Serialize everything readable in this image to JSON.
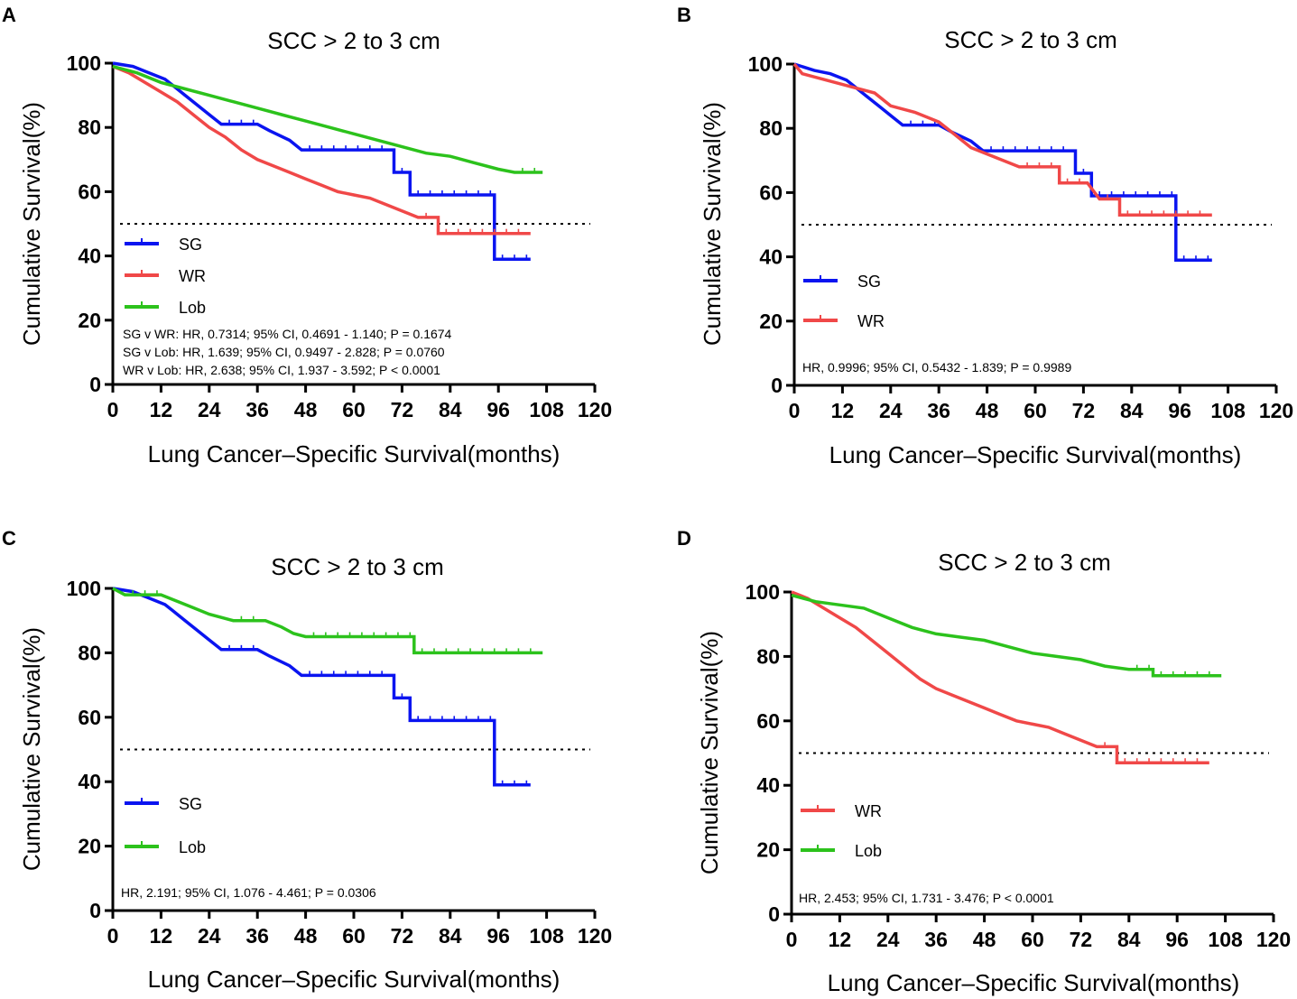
{
  "colors": {
    "SG": "#0a14f0",
    "WR": "#f04848",
    "Lob": "#2cc21c"
  },
  "chart_data": [
    {
      "panel": "A",
      "type": "line",
      "title": "SCC > 2 to 3 cm",
      "xlabel": "Lung Cancer–Specific Survival(months)",
      "ylabel": "Cumulative Survival(%)",
      "xlim": [
        0,
        120
      ],
      "ylim": [
        0,
        100
      ],
      "xticks": [
        "0",
        "12",
        "24",
        "36",
        "48",
        "60",
        "72",
        "84",
        "96",
        "108",
        "120"
      ],
      "yticks": [
        "0",
        "20",
        "40",
        "60",
        "80",
        "100"
      ],
      "reference_line": 50,
      "legend": [
        "SG",
        "WR",
        "Lob"
      ],
      "stats": [
        "SG v WR: HR, 0.7314; 95% CI, 0.4691  - 1.140; P = 0.1674",
        "SG v Lob: HR, 1.639; 95% CI, 0.9497  - 2.828; P = 0.0760",
        "WR v Lob: HR, 2.638; 95% CI, 1.937 - 3.592; P < 0.0001"
      ],
      "series": [
        {
          "name": "SG",
          "points": [
            [
              0,
              100
            ],
            [
              5,
              99
            ],
            [
              9,
              97
            ],
            [
              13,
              95
            ],
            [
              15,
              93
            ],
            [
              18,
              90
            ],
            [
              21,
              87
            ],
            [
              24,
              84
            ],
            [
              27,
              81
            ],
            [
              36,
              81
            ],
            [
              39,
              79
            ],
            [
              44,
              76
            ],
            [
              47,
              73
            ],
            [
              70,
              73
            ],
            [
              70,
              66
            ],
            [
              74,
              66
            ],
            [
              74,
              59
            ],
            [
              95,
              59
            ],
            [
              95,
              39
            ],
            [
              104,
              39
            ]
          ]
        },
        {
          "name": "WR",
          "points": [
            [
              0,
              99
            ],
            [
              4,
              97
            ],
            [
              8,
              94
            ],
            [
              12,
              91
            ],
            [
              16,
              88
            ],
            [
              20,
              84
            ],
            [
              24,
              80
            ],
            [
              28,
              77
            ],
            [
              32,
              73
            ],
            [
              36,
              70
            ],
            [
              40,
              68
            ],
            [
              44,
              66
            ],
            [
              48,
              64
            ],
            [
              52,
              62
            ],
            [
              56,
              60
            ],
            [
              60,
              59
            ],
            [
              64,
              58
            ],
            [
              68,
              56
            ],
            [
              72,
              54
            ],
            [
              76,
              52
            ],
            [
              81,
              52
            ],
            [
              81,
              47
            ],
            [
              104,
              47
            ]
          ]
        },
        {
          "name": "Lob",
          "points": [
            [
              0,
              99
            ],
            [
              6,
              97
            ],
            [
              12,
              94
            ],
            [
              18,
              92
            ],
            [
              24,
              90
            ],
            [
              30,
              88
            ],
            [
              36,
              86
            ],
            [
              42,
              84
            ],
            [
              48,
              82
            ],
            [
              54,
              80
            ],
            [
              60,
              78
            ],
            [
              66,
              76
            ],
            [
              72,
              74
            ],
            [
              78,
              72
            ],
            [
              84,
              71
            ],
            [
              90,
              69
            ],
            [
              96,
              67
            ],
            [
              100,
              66
            ],
            [
              107,
              66
            ]
          ]
        }
      ]
    },
    {
      "panel": "B",
      "type": "line",
      "title": "SCC > 2 to 3 cm",
      "xlabel": "Lung Cancer–Specific Survival(months)",
      "ylabel": "Cumulative Survival(%)",
      "xlim": [
        0,
        120
      ],
      "ylim": [
        0,
        100
      ],
      "xticks": [
        "0",
        "12",
        "24",
        "36",
        "48",
        "60",
        "72",
        "84",
        "96",
        "108",
        "120"
      ],
      "yticks": [
        "0",
        "20",
        "40",
        "60",
        "80",
        "100"
      ],
      "reference_line": 50,
      "legend": [
        "SG",
        "WR"
      ],
      "stats": [
        "HR, 0.9996; 95% CI, 0.5432  - 1.839; P = 0.9989"
      ],
      "series": [
        {
          "name": "SG",
          "points": [
            [
              0,
              100
            ],
            [
              5,
              98
            ],
            [
              9,
              97
            ],
            [
              13,
              95
            ],
            [
              15,
              93
            ],
            [
              18,
              90
            ],
            [
              21,
              87
            ],
            [
              24,
              84
            ],
            [
              27,
              81
            ],
            [
              36,
              81
            ],
            [
              39,
              79
            ],
            [
              44,
              76
            ],
            [
              47,
              73
            ],
            [
              70,
              73
            ],
            [
              70,
              66
            ],
            [
              74,
              66
            ],
            [
              74,
              59
            ],
            [
              95,
              59
            ],
            [
              95,
              39
            ],
            [
              104,
              39
            ]
          ]
        },
        {
          "name": "WR",
          "points": [
            [
              0,
              100
            ],
            [
              2,
              97
            ],
            [
              8,
              95
            ],
            [
              14,
              93
            ],
            [
              20,
              91
            ],
            [
              24,
              87
            ],
            [
              30,
              85
            ],
            [
              36,
              82
            ],
            [
              40,
              78
            ],
            [
              44,
              74
            ],
            [
              50,
              71
            ],
            [
              56,
              68
            ],
            [
              66,
              68
            ],
            [
              66,
              63
            ],
            [
              73,
              63
            ],
            [
              76,
              58
            ],
            [
              81,
              58
            ],
            [
              81,
              53
            ],
            [
              104,
              53
            ]
          ]
        }
      ]
    },
    {
      "panel": "C",
      "type": "line",
      "title": "SCC > 2 to 3 cm",
      "xlabel": "Lung Cancer–Specific Survival(months)",
      "ylabel": "Cumulative Survival(%)",
      "xlim": [
        0,
        120
      ],
      "ylim": [
        0,
        100
      ],
      "xticks": [
        "0",
        "12",
        "24",
        "36",
        "48",
        "60",
        "72",
        "84",
        "96",
        "108",
        "120"
      ],
      "yticks": [
        "0",
        "20",
        "40",
        "60",
        "80",
        "100"
      ],
      "reference_line": 50,
      "legend": [
        "SG",
        "Lob"
      ],
      "stats": [
        "HR, 2.191; 95% CI, 1.076  - 4.461; P = 0.0306"
      ],
      "series": [
        {
          "name": "SG",
          "points": [
            [
              0,
              100
            ],
            [
              5,
              99
            ],
            [
              9,
              97
            ],
            [
              13,
              95
            ],
            [
              15,
              93
            ],
            [
              18,
              90
            ],
            [
              21,
              87
            ],
            [
              24,
              84
            ],
            [
              27,
              81
            ],
            [
              36,
              81
            ],
            [
              39,
              79
            ],
            [
              44,
              76
            ],
            [
              47,
              73
            ],
            [
              70,
              73
            ],
            [
              70,
              66
            ],
            [
              74,
              66
            ],
            [
              74,
              59
            ],
            [
              95,
              59
            ],
            [
              95,
              39
            ],
            [
              104,
              39
            ]
          ]
        },
        {
          "name": "Lob",
          "points": [
            [
              0,
              100
            ],
            [
              3,
              98
            ],
            [
              12,
              98
            ],
            [
              16,
              96
            ],
            [
              20,
              94
            ],
            [
              24,
              92
            ],
            [
              30,
              90
            ],
            [
              38,
              90
            ],
            [
              42,
              88
            ],
            [
              45,
              86
            ],
            [
              48,
              85
            ],
            [
              75,
              85
            ],
            [
              75,
              80
            ],
            [
              107,
              80
            ]
          ]
        }
      ]
    },
    {
      "panel": "D",
      "type": "line",
      "title": "SCC > 2 to 3 cm",
      "xlabel": "Lung Cancer–Specific Survival(months)",
      "ylabel": "Cumulative Survival(%)",
      "xlim": [
        0,
        120
      ],
      "ylim": [
        0,
        100
      ],
      "xticks": [
        "0",
        "12",
        "24",
        "36",
        "48",
        "60",
        "72",
        "84",
        "96",
        "108",
        "120"
      ],
      "yticks": [
        "0",
        "20",
        "40",
        "60",
        "80",
        "100"
      ],
      "reference_line": 50,
      "legend": [
        "WR",
        "Lob"
      ],
      "stats": [
        "HR, 2.453; 95% CI, 1.731  - 3.476; P < 0.0001"
      ],
      "series": [
        {
          "name": "WR",
          "points": [
            [
              0,
              100
            ],
            [
              4,
              98
            ],
            [
              8,
              95
            ],
            [
              12,
              92
            ],
            [
              16,
              89
            ],
            [
              20,
              85
            ],
            [
              24,
              81
            ],
            [
              28,
              77
            ],
            [
              32,
              73
            ],
            [
              36,
              70
            ],
            [
              40,
              68
            ],
            [
              44,
              66
            ],
            [
              48,
              64
            ],
            [
              52,
              62
            ],
            [
              56,
              60
            ],
            [
              60,
              59
            ],
            [
              64,
              58
            ],
            [
              68,
              56
            ],
            [
              72,
              54
            ],
            [
              76,
              52
            ],
            [
              81,
              52
            ],
            [
              81,
              47
            ],
            [
              104,
              47
            ]
          ]
        },
        {
          "name": "Lob",
          "points": [
            [
              0,
              99
            ],
            [
              6,
              97
            ],
            [
              12,
              96
            ],
            [
              18,
              95
            ],
            [
              24,
              92
            ],
            [
              30,
              89
            ],
            [
              36,
              87
            ],
            [
              42,
              86
            ],
            [
              48,
              85
            ],
            [
              54,
              83
            ],
            [
              60,
              81
            ],
            [
              66,
              80
            ],
            [
              72,
              79
            ],
            [
              78,
              77
            ],
            [
              84,
              76
            ],
            [
              90,
              76
            ],
            [
              90,
              74
            ],
            [
              107,
              74
            ]
          ]
        }
      ]
    }
  ]
}
